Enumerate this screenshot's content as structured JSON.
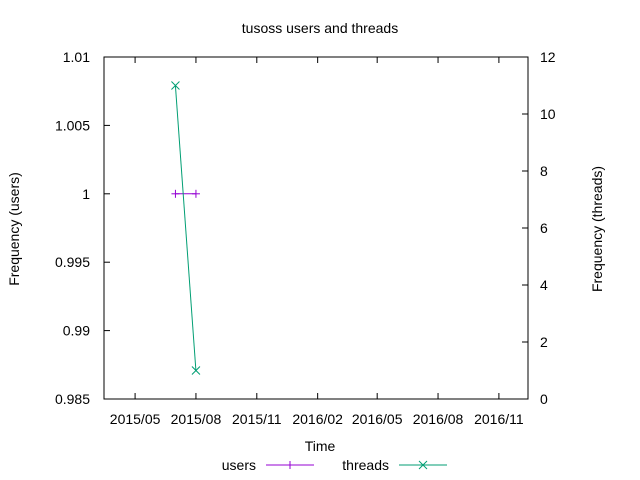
{
  "chart_data": {
    "type": "line",
    "title": "tusoss users and threads",
    "xlabel": "Time",
    "ylabel_left": "Frequency (users)",
    "ylabel_right": "Frequency (threads)",
    "x_range": [
      "2015-03-15",
      "2016-12-15"
    ],
    "x_ticks": [
      "2015/05",
      "2015/08",
      "2015/11",
      "2016/02",
      "2016/05",
      "2016/08",
      "2016/11"
    ],
    "y_left_range": [
      0.985,
      1.01
    ],
    "y_left_ticks": [
      "0.985",
      "0.99",
      "0.995",
      "1",
      "1.005",
      "1.01"
    ],
    "y_right_range": [
      0,
      12
    ],
    "y_right_ticks": [
      "0",
      "2",
      "4",
      "6",
      "8",
      "10",
      "12"
    ],
    "grid": false,
    "legend_position": "bottom",
    "series": [
      {
        "name": "users",
        "axis": "left",
        "color": "#9400d3",
        "marker": "plus",
        "x": [
          "2015-07-01",
          "2015-08-01"
        ],
        "y": [
          1,
          1
        ]
      },
      {
        "name": "threads",
        "axis": "right",
        "color": "#009e73",
        "marker": "cross",
        "x": [
          "2015-07-01",
          "2015-08-01"
        ],
        "y": [
          11,
          1
        ]
      }
    ]
  }
}
